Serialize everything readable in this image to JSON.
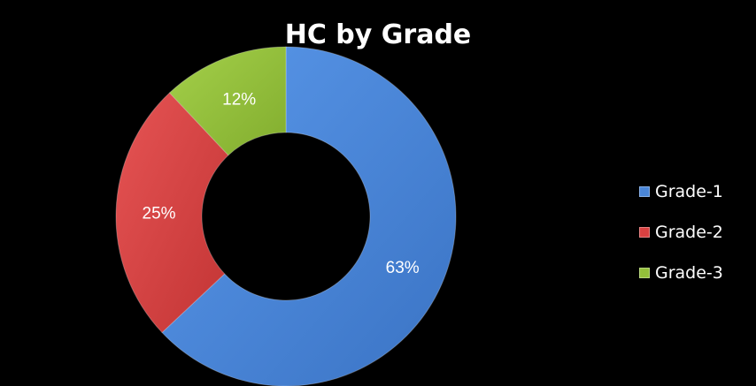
{
  "chart_data": {
    "type": "pie",
    "variant": "doughnut",
    "title": "HC by Grade",
    "categories": [
      "Grade-1",
      "Grade-2",
      "Grade-3"
    ],
    "values": [
      63,
      25,
      12
    ],
    "data_labels": [
      "63%",
      "25%",
      "12%"
    ],
    "colors": [
      "#4a86d8",
      "#d94141",
      "#93bf3a"
    ],
    "legend_placement": "right"
  }
}
